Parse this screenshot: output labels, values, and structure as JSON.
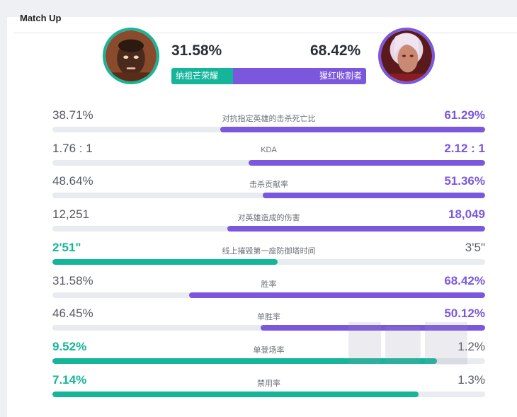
{
  "header": {
    "title": "Match Up"
  },
  "matchup": {
    "left": {
      "champion": "纳祖芒荣耀",
      "winrate": "31.58%",
      "share": 31.58,
      "color": "#15b59a"
    },
    "right": {
      "champion": "猩红收割者",
      "winrate": "68.42%",
      "share": 68.42,
      "color": "#7b57de"
    }
  },
  "stats": [
    {
      "name": "对抗指定英雄的击杀死亡比",
      "left": "38.71%",
      "right": "61.29%",
      "winner": "right",
      "fill": 61.29
    },
    {
      "name": "KDA",
      "left": "1.76 : 1",
      "right": "2.12 : 1",
      "winner": "right",
      "fill": 54.6
    },
    {
      "name": "击杀贡献率",
      "left": "48.64%",
      "right": "51.36%",
      "winner": "right",
      "fill": 51.36
    },
    {
      "name": "对英雄造成的伤害",
      "left": "12,251",
      "right": "18,049",
      "winner": "right",
      "fill": 59.6
    },
    {
      "name": "线上摧毁第一座防御塔时间",
      "left": "2'51\"",
      "right": "3'5\"",
      "winner": "left",
      "fill": 52.0
    },
    {
      "name": "胜率",
      "left": "31.58%",
      "right": "68.42%",
      "winner": "right",
      "fill": 68.42
    },
    {
      "name": "单胜率",
      "left": "46.45%",
      "right": "50.12%",
      "winner": "right",
      "fill": 51.9
    },
    {
      "name": "单登场率",
      "left": "9.52%",
      "right": "1.2%",
      "winner": "left",
      "fill": 88.8
    },
    {
      "name": "禁用率",
      "left": "7.14%",
      "right": "1.3%",
      "winner": "left",
      "fill": 84.6
    }
  ]
}
